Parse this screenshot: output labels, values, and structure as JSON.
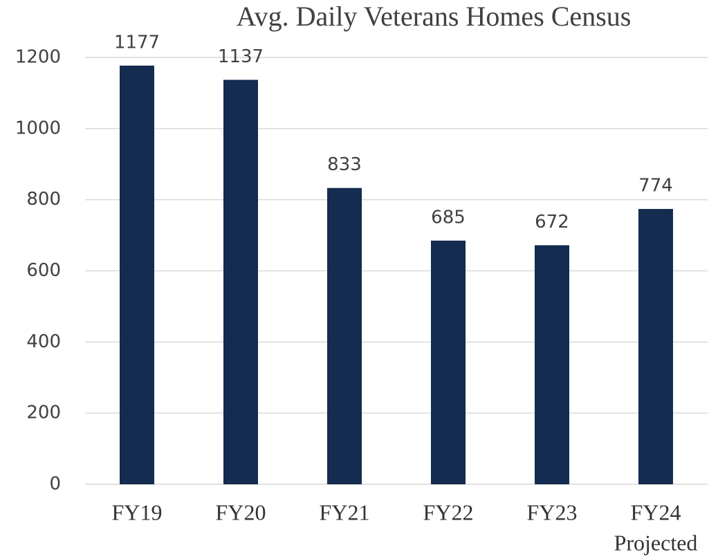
{
  "chart_data": {
    "type": "bar",
    "title": "Avg. Daily Veterans Homes Census",
    "categories": [
      "FY19",
      "FY20",
      "FY21",
      "FY22",
      "FY23",
      "FY24"
    ],
    "annotations": [
      "Projected"
    ],
    "values": [
      1177,
      1137,
      833,
      685,
      672,
      774
    ],
    "color": "#132c4f",
    "ylim": [
      0,
      1200
    ],
    "yticks": [
      0,
      200,
      400,
      600,
      800,
      1000,
      1200
    ],
    "grid": true
  }
}
